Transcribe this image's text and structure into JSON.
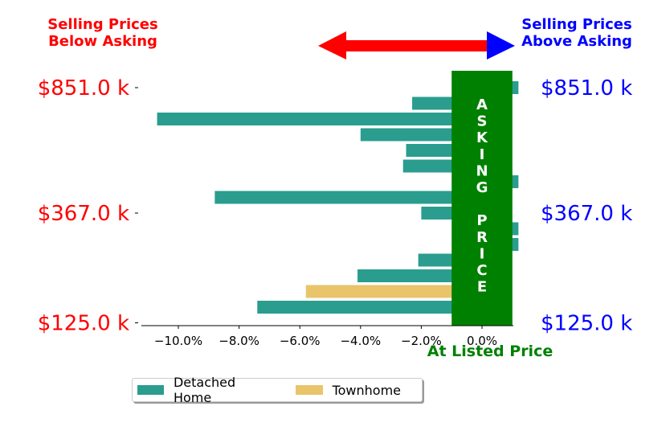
{
  "chart_data": {
    "type": "bar",
    "orientation": "horizontal",
    "annotations": {
      "below": "Selling Prices\nBelow Asking",
      "above": "Selling Prices\nAbove Asking",
      "center_label": "ASKING PRICE",
      "center_letters": [
        "A",
        "S",
        "K",
        "I",
        "N",
        "G",
        "",
        "P",
        "R",
        "I",
        "C",
        "E"
      ],
      "at_listed": "At Listed Price"
    },
    "y_tick_labels": [
      "$851.0 k",
      "$367.0 k",
      "$125.0 k"
    ],
    "y_tick_rows": [
      0,
      8,
      15
    ],
    "x_ticks": [
      -10,
      -8,
      -6,
      -4,
      -2,
      0
    ],
    "x_tick_labels": [
      "−10.0%",
      "−8.0%",
      "−6.0%",
      "−4.0%",
      "−2.0%",
      "0.0%"
    ],
    "xlim": [
      -11.3,
      0.75
    ],
    "asking_band": [
      -1.0,
      1.0
    ],
    "rows": [
      {
        "category": "Detached Home",
        "value": 1.2
      },
      {
        "category": "Detached Home",
        "value": -2.3
      },
      {
        "category": "Detached Home",
        "value": -10.7
      },
      {
        "category": "Detached Home",
        "value": -4.0
      },
      {
        "category": "Detached Home",
        "value": -2.5
      },
      {
        "category": "Detached Home",
        "value": -2.6
      },
      {
        "category": "Detached Home",
        "value": 1.2
      },
      {
        "category": "Detached Home",
        "value": -8.8
      },
      {
        "category": "Detached Home",
        "value": -2.0
      },
      {
        "category": "Detached Home",
        "value": 1.2
      },
      {
        "category": "Detached Home",
        "value": 1.2
      },
      {
        "category": "Detached Home",
        "value": -2.1
      },
      {
        "category": "Detached Home",
        "value": -4.1
      },
      {
        "category": "Townhome",
        "value": -5.8
      },
      {
        "category": "Detached Home",
        "value": -7.4
      }
    ],
    "legend": {
      "placement": "bottom",
      "entries": [
        {
          "name": "Detached Home",
          "color": "#2a9d8f"
        },
        {
          "name": "Townhome",
          "color": "#e9c46a"
        }
      ]
    },
    "colors": {
      "left_labels": "#ff0000",
      "right_labels": "#0000ff",
      "asking_band": "#008000",
      "arrow_left": "#ff0000",
      "arrow_right": "#0000ff"
    }
  }
}
